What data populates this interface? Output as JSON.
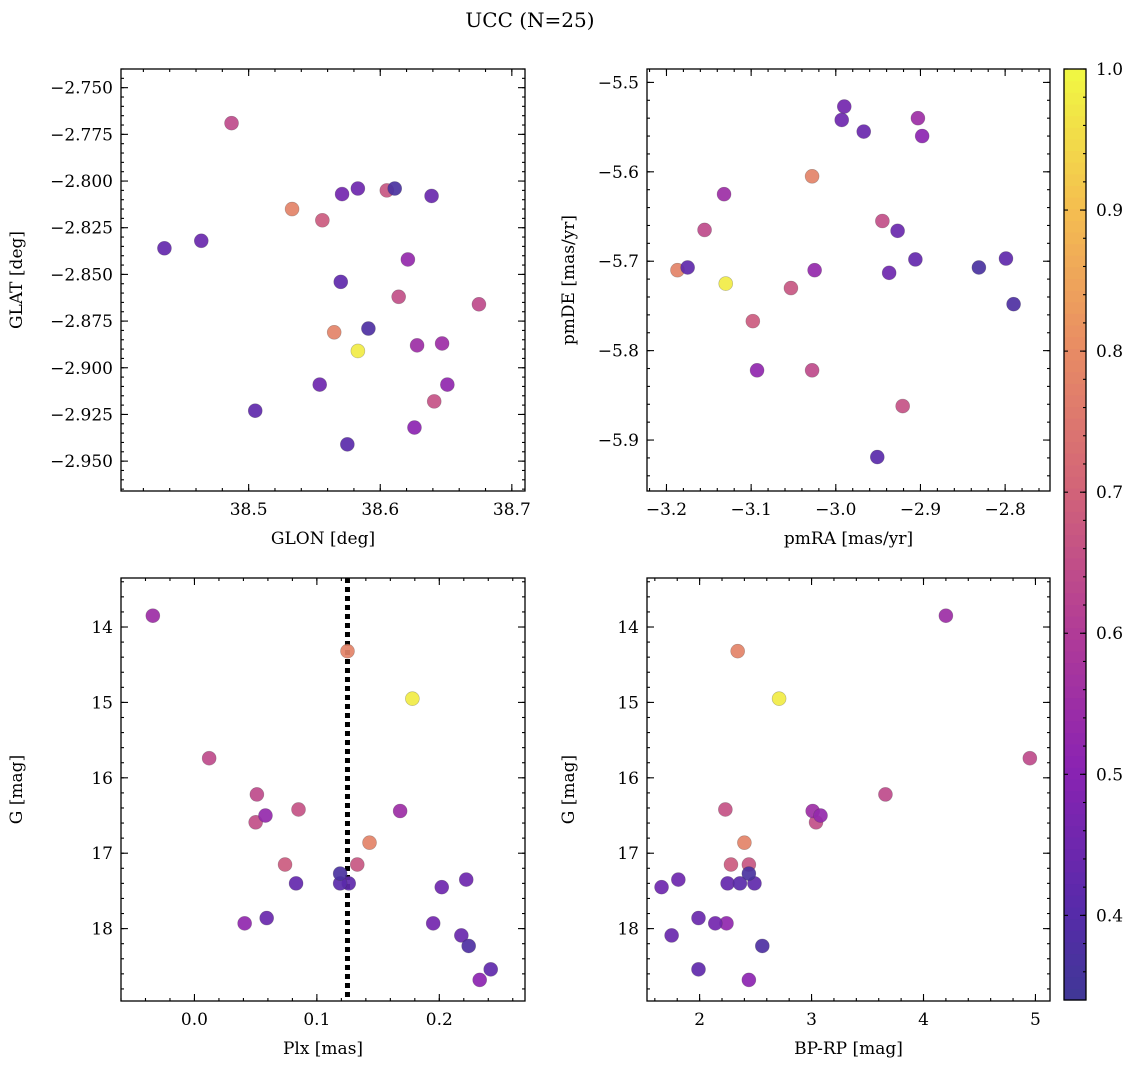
{
  "chart_data": {
    "title": "UCC (N=25)",
    "type": "scatter",
    "colormap": "plasma",
    "colorbar": {
      "range": [
        0.34,
        1.0
      ],
      "ticks": [
        0.4,
        0.5,
        0.6,
        0.7,
        0.8,
        0.9,
        1.0
      ],
      "tick_labels": [
        "0.4",
        "0.5",
        "0.6",
        "0.7",
        "0.8",
        "0.9",
        "1.0"
      ]
    },
    "points": [
      {
        "glon": 38.487,
        "glat": -2.769,
        "pmra": -3.155,
        "pmde": -5.665,
        "plx": 0.012,
        "g": 15.74,
        "bprp": 4.95,
        "prob": 0.64
      },
      {
        "glon": 38.533,
        "glat": -2.815,
        "pmra": -3.187,
        "pmde": -5.71,
        "plx": 0.143,
        "g": 16.86,
        "bprp": 2.4,
        "prob": 0.78
      },
      {
        "glon": 38.556,
        "glat": -2.821,
        "pmra": -3.098,
        "pmde": -5.767,
        "plx": 0.074,
        "g": 17.15,
        "bprp": 2.28,
        "prob": 0.68
      },
      {
        "glon": 38.605,
        "glat": -2.805,
        "pmra": -3.053,
        "pmde": -5.73,
        "plx": 0.133,
        "g": 17.15,
        "bprp": 2.44,
        "prob": 0.67
      },
      {
        "glon": 38.614,
        "glat": -2.862,
        "pmra": -2.945,
        "pmde": -5.655,
        "plx": 0.05,
        "g": 16.59,
        "bprp": 3.04,
        "prob": 0.65
      },
      {
        "glon": 38.675,
        "glat": -2.866,
        "pmra": -3.028,
        "pmde": -5.822,
        "plx": 0.051,
        "g": 16.22,
        "bprp": 3.66,
        "prob": 0.64
      },
      {
        "glon": 38.641,
        "glat": -2.918,
        "pmra": -2.921,
        "pmde": -5.862,
        "plx": 0.085,
        "g": 16.42,
        "bprp": 2.23,
        "prob": 0.66
      },
      {
        "glon": 38.565,
        "glat": -2.881,
        "pmra": -3.028,
        "pmde": -5.605,
        "plx": 0.125,
        "g": 14.32,
        "bprp": 2.34,
        "prob": 0.78
      },
      {
        "glon": 38.583,
        "glat": -2.891,
        "pmra": -3.13,
        "pmde": -5.725,
        "plx": 0.178,
        "g": 14.95,
        "bprp": 2.71,
        "prob": 0.98
      },
      {
        "glon": 38.628,
        "glat": -2.888,
        "pmra": -3.132,
        "pmde": -5.625,
        "plx": -0.034,
        "g": 13.85,
        "bprp": 4.2,
        "prob": 0.55
      },
      {
        "glon": 38.647,
        "glat": -2.887,
        "pmra": -2.903,
        "pmde": -5.54,
        "plx": 0.168,
        "g": 16.44,
        "bprp": 3.01,
        "prob": 0.55
      },
      {
        "glon": 38.621,
        "glat": -2.842,
        "pmra": -3.025,
        "pmde": -5.71,
        "plx": 0.058,
        "g": 16.5,
        "bprp": 3.08,
        "prob": 0.53
      },
      {
        "glon": 38.651,
        "glat": -2.909,
        "pmra": -3.093,
        "pmde": -5.822,
        "plx": 0.041,
        "g": 17.93,
        "bprp": 2.24,
        "prob": 0.52
      },
      {
        "glon": 38.626,
        "glat": -2.932,
        "pmra": -2.898,
        "pmde": -5.56,
        "plx": 0.233,
        "g": 18.68,
        "bprp": 2.44,
        "prob": 0.51
      },
      {
        "glon": 38.571,
        "glat": -2.807,
        "pmra": -2.99,
        "pmde": -5.527,
        "plx": 0.195,
        "g": 17.93,
        "bprp": 2.14,
        "prob": 0.46
      },
      {
        "glon": 38.583,
        "glat": -2.804,
        "pmra": -2.993,
        "pmde": -5.542,
        "plx": 0.202,
        "g": 17.45,
        "bprp": 1.66,
        "prob": 0.45
      },
      {
        "glon": 38.554,
        "glat": -2.909,
        "pmra": -2.937,
        "pmde": -5.713,
        "plx": 0.222,
        "g": 17.35,
        "bprp": 1.81,
        "prob": 0.45
      },
      {
        "glon": 38.464,
        "glat": -2.832,
        "pmra": -2.927,
        "pmde": -5.666,
        "plx": 0.218,
        "g": 18.09,
        "bprp": 1.75,
        "prob": 0.44
      },
      {
        "glon": 38.639,
        "glat": -2.808,
        "pmra": -2.967,
        "pmde": -5.555,
        "plx": 0.059,
        "g": 17.86,
        "bprp": 1.99,
        "prob": 0.44
      },
      {
        "glon": 38.436,
        "glat": -2.836,
        "pmra": -2.906,
        "pmde": -5.698,
        "plx": 0.083,
        "g": 17.4,
        "bprp": 2.25,
        "prob": 0.43
      },
      {
        "glon": 38.505,
        "glat": -2.923,
        "pmra": -2.799,
        "pmde": -5.697,
        "plx": 0.242,
        "g": 18.54,
        "bprp": 1.99,
        "prob": 0.42
      },
      {
        "glon": 38.57,
        "glat": -2.854,
        "pmra": -3.175,
        "pmde": -5.707,
        "plx": 0.126,
        "g": 17.4,
        "bprp": 2.49,
        "prob": 0.42
      },
      {
        "glon": 38.575,
        "glat": -2.941,
        "pmra": -2.951,
        "pmde": -5.919,
        "plx": 0.119,
        "g": 17.4,
        "bprp": 2.36,
        "prob": 0.41
      },
      {
        "glon": 38.591,
        "glat": -2.879,
        "pmra": -2.79,
        "pmde": -5.748,
        "plx": 0.224,
        "g": 18.23,
        "bprp": 2.56,
        "prob": 0.38
      },
      {
        "glon": 38.611,
        "glat": -2.804,
        "pmra": -2.831,
        "pmde": -5.707,
        "plx": 0.119,
        "g": 17.27,
        "bprp": 2.44,
        "prob": 0.37
      }
    ],
    "subplots": [
      {
        "id": "glon-glat",
        "xkey": "glon",
        "ykey": "glat",
        "xlabel": "GLON [deg]",
        "ylabel": "GLAT [deg]",
        "xlim": [
          38.403,
          38.71
        ],
        "ylim": [
          -2.966,
          -2.74
        ],
        "yinvert": false,
        "xticks": [
          38.5,
          38.6,
          38.7
        ],
        "xtick_labels": [
          "38.5",
          "38.6",
          "38.7"
        ],
        "yticks": [
          -2.75,
          -2.775,
          -2.8,
          -2.825,
          -2.85,
          -2.875,
          -2.9,
          -2.925,
          -2.95
        ],
        "ytick_labels": [
          "−2.750",
          "−2.775",
          "−2.800",
          "−2.825",
          "−2.850",
          "−2.875",
          "−2.900",
          "−2.925",
          "−2.950"
        ],
        "xminor": 0.02,
        "yminor": 0.005
      },
      {
        "id": "pmra-pmde",
        "xkey": "pmra",
        "ykey": "pmde",
        "xlabel": "pmRA [mas/yr]",
        "ylabel": "pmDE [mas/yr]",
        "xlim": [
          -3.223,
          -2.747
        ],
        "ylim": [
          -5.957,
          -5.485
        ],
        "yinvert": false,
        "xticks": [
          -3.2,
          -3.1,
          -3.0,
          -2.9,
          -2.8
        ],
        "xtick_labels": [
          "−3.2",
          "−3.1",
          "−3.0",
          "−2.9",
          "−2.8"
        ],
        "yticks": [
          -5.5,
          -5.6,
          -5.7,
          -5.8,
          -5.9
        ],
        "ytick_labels": [
          "−5.5",
          "−5.6",
          "−5.7",
          "−5.8",
          "−5.9"
        ],
        "xminor": 0.02,
        "yminor": 0.02
      },
      {
        "id": "plx-g",
        "xkey": "plx",
        "ykey": "g",
        "xlabel": "Plx [mas]",
        "ylabel": "G [mag]",
        "xlim": [
          -0.06,
          0.27
        ],
        "ylim": [
          18.96,
          13.35
        ],
        "yinvert": true,
        "vline": 0.125,
        "xticks": [
          0.0,
          0.1,
          0.2
        ],
        "xtick_labels": [
          "0.0",
          "0.1",
          "0.2"
        ],
        "yticks": [
          14,
          15,
          16,
          17,
          18
        ],
        "ytick_labels": [
          "14",
          "15",
          "16",
          "17",
          "18"
        ],
        "xminor": 0.02,
        "yminor": 0.2
      },
      {
        "id": "bprp-g",
        "xkey": "bprp",
        "ykey": "g",
        "xlabel": "BP-RP [mag]",
        "ylabel": "G [mag]",
        "xlim": [
          1.53,
          5.13
        ],
        "ylim": [
          18.96,
          13.35
        ],
        "yinvert": true,
        "xticks": [
          2,
          3,
          4,
          5
        ],
        "xtick_labels": [
          "2",
          "3",
          "4",
          "5"
        ],
        "yticks": [
          14,
          15,
          16,
          17,
          18
        ],
        "ytick_labels": [
          "14",
          "15",
          "16",
          "17",
          "18"
        ],
        "xminor": 0.2,
        "yminor": 0.2
      }
    ]
  }
}
